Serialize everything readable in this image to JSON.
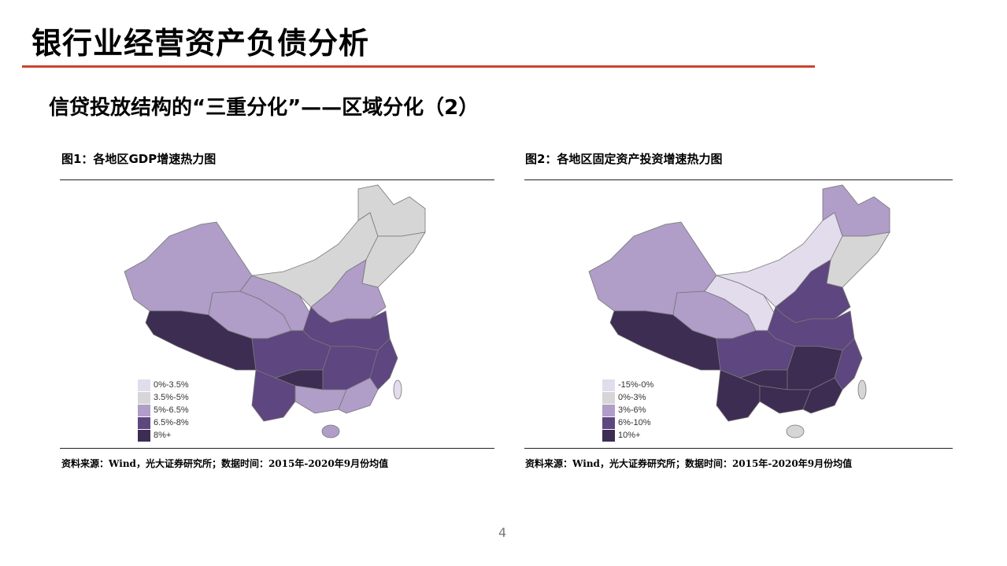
{
  "slide": {
    "title": "银行业经营资产负债分析",
    "subtitle": "信贷投放结构的“三重分化”——区域分化（2）",
    "page_number": "4",
    "accent_color": "#c8452f"
  },
  "palette": [
    "#e2dcec",
    "#d6d6d6",
    "#b09dc8",
    "#5e4680",
    "#3d2d52"
  ],
  "figures": [
    {
      "caption": "图1：各地区GDP增速热力图",
      "legend": [
        "0%-3.5%",
        "3.5%-5%",
        "5%-6.5%",
        "6.5%-8%",
        "8%+"
      ],
      "source": "资料来源：Wind，光大证券研究所；数据时间：2015年-2020年9月份均值",
      "regions": {
        "xinjiang": 2,
        "tibet": 4,
        "qinghai": 2,
        "gansu": 2,
        "inner_mongolia": 1,
        "heilongjiang": 1,
        "jilin_liaoning": 1,
        "north_china": 2,
        "central_north": 3,
        "sichuan": 3,
        "yunnan": 3,
        "guizhou": 4,
        "central_south": 3,
        "southeast_coast": 3,
        "guangxi": 2,
        "guangdong": 2,
        "hainan": 2,
        "taiwan": 0
      }
    },
    {
      "caption": "图2：各地区固定资产投资增速热力图",
      "legend": [
        "-15%-0%",
        "0%-3%",
        "3%-6%",
        "6%-10%",
        "10%+"
      ],
      "source": "资料来源：Wind，光大证券研究所；数据时间：2015年-2020年9月份均值",
      "regions": {
        "xinjiang": 2,
        "tibet": 4,
        "qinghai": 2,
        "gansu": 0,
        "inner_mongolia": 0,
        "heilongjiang": 2,
        "jilin_liaoning": 1,
        "north_china": 3,
        "central_north": 3,
        "sichuan": 3,
        "yunnan": 4,
        "guizhou": 4,
        "central_south": 4,
        "southeast_coast": 3,
        "guangxi": 4,
        "guangdong": 4,
        "hainan": 1,
        "taiwan": 1
      }
    }
  ]
}
